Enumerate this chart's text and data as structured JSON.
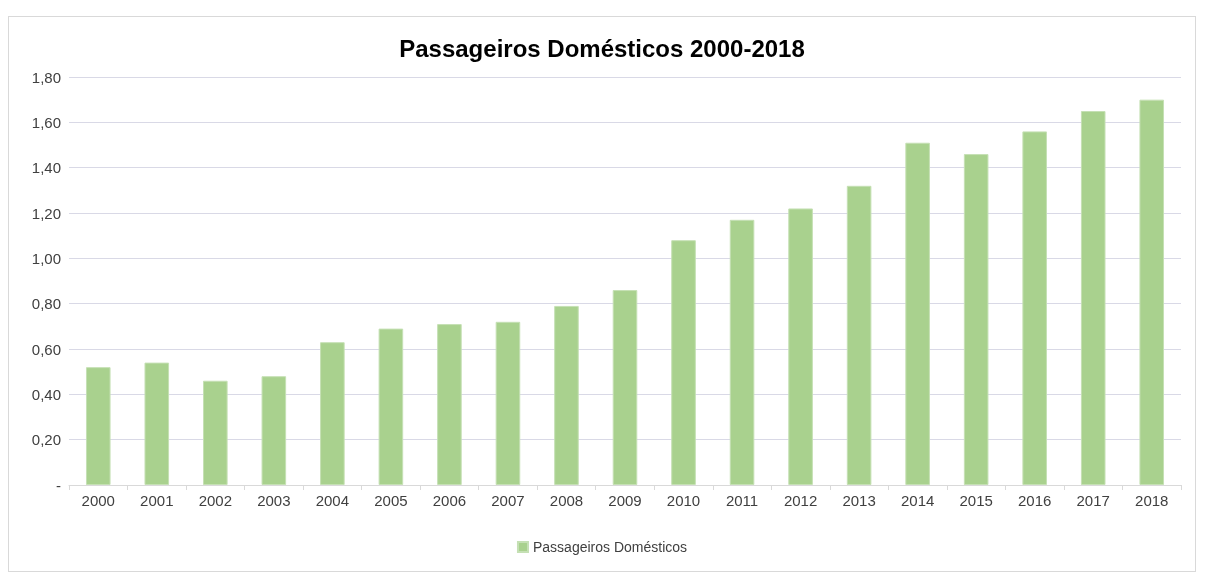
{
  "chart_data": {
    "type": "bar",
    "title": "Passageiros Domésticos 2000-2018",
    "categories": [
      "2000",
      "2001",
      "2002",
      "2003",
      "2004",
      "2005",
      "2006",
      "2007",
      "2008",
      "2009",
      "2010",
      "2011",
      "2012",
      "2013",
      "2014",
      "2015",
      "2016",
      "2017",
      "2018"
    ],
    "series": [
      {
        "name": "Passageiros Domésticos",
        "color": "#a9d18e",
        "values": [
          0.52,
          0.54,
          0.46,
          0.48,
          0.63,
          0.69,
          0.71,
          0.72,
          0.79,
          0.86,
          1.08,
          1.17,
          1.22,
          1.32,
          1.51,
          1.46,
          1.56,
          1.65,
          1.7
        ]
      }
    ],
    "ylim": [
      0,
      1.8
    ],
    "yticks": [
      {
        "value": 0,
        "label": "-"
      },
      {
        "value": 0.2,
        "label": "0,20"
      },
      {
        "value": 0.4,
        "label": "0,40"
      },
      {
        "value": 0.6,
        "label": "0,60"
      },
      {
        "value": 0.8,
        "label": "0,80"
      },
      {
        "value": 1.0,
        "label": "1,00"
      },
      {
        "value": 1.2,
        "label": "1,20"
      },
      {
        "value": 1.4,
        "label": "1,40"
      },
      {
        "value": 1.6,
        "label": "1,60"
      },
      {
        "value": 1.8,
        "label": "1,80"
      }
    ],
    "grid": "y",
    "legend": "bottom"
  }
}
